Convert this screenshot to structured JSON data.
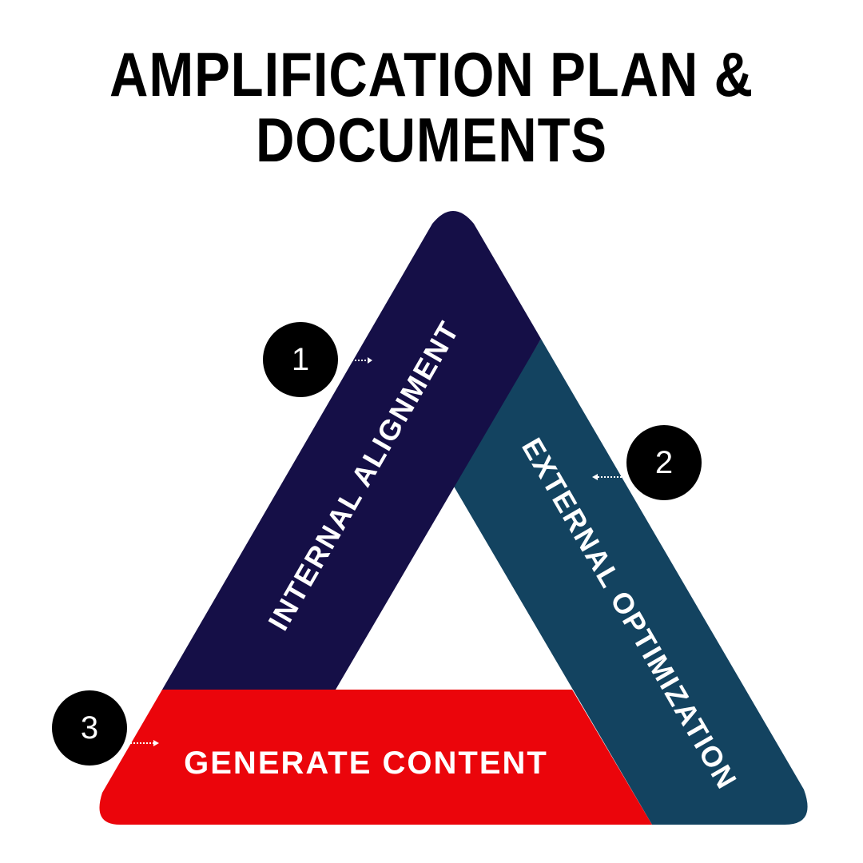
{
  "title": {
    "line1": "AMPLIFICATION PLAN &",
    "line2": "DOCUMENTS"
  },
  "steps": [
    {
      "number": "1",
      "label": "INTERNAL ALIGNMENT",
      "color": "#150f47"
    },
    {
      "number": "2",
      "label": "EXTERNAL OPTIMIZATION",
      "color": "#134360"
    },
    {
      "number": "3",
      "label": "GENERATE CONTENT",
      "color": "#eb050b"
    }
  ],
  "badge_color": "#000000"
}
